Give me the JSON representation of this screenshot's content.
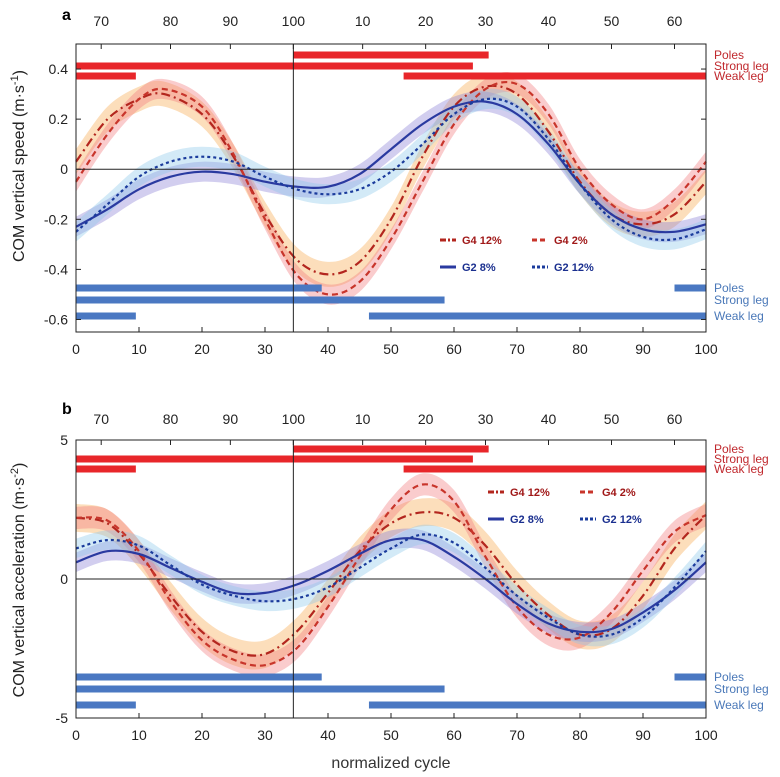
{
  "chart_data": [
    {
      "panel": "a",
      "type": "line",
      "ylabel": "COM vertical speed (m·s-1)",
      "ylabel_main": "COM vertical speed (m·s",
      "ylabel_sup": "-1",
      "ylabel_end": ")",
      "xlabel": "",
      "xlim": [
        0,
        100
      ],
      "ylim": [
        -0.65,
        0.5
      ],
      "yticks": [
        0.4,
        0.2,
        0,
        -0.2,
        -0.4,
        -0.6
      ],
      "ytick_labels": [
        "0.4",
        "0.2",
        "0",
        "-0.2",
        "-0.4",
        "-0.6"
      ],
      "xticks": [
        0,
        10,
        20,
        30,
        40,
        50,
        60,
        70,
        80,
        90,
        100
      ],
      "xtick_labels": [
        "0",
        "10",
        "20",
        "30",
        "40",
        "50",
        "60",
        "70",
        "80",
        "90",
        "100"
      ],
      "top_ticks": [
        {
          "x": 4,
          "label": "70"
        },
        {
          "x": 15,
          "label": "80"
        },
        {
          "x": 24.5,
          "label": "90"
        },
        {
          "x": 34.5,
          "label": "100"
        },
        {
          "x": 45.5,
          "label": "10"
        },
        {
          "x": 55.5,
          "label": "20"
        },
        {
          "x": 65,
          "label": "30"
        },
        {
          "x": 75,
          "label": "40"
        },
        {
          "x": 85,
          "label": "50"
        },
        {
          "x": 95,
          "label": "60"
        }
      ],
      "vline_x": 34.5,
      "zero_line": 0,
      "series": [
        {
          "name": "G4 12%",
          "color": "#b3261e",
          "dash": "9 4 2 4",
          "band": "#f7a84b",
          "band_width": 0.05,
          "x": [
            0,
            5,
            10,
            14,
            20,
            25,
            30,
            35,
            40,
            45,
            50,
            55,
            60,
            65,
            70,
            75,
            80,
            85,
            90,
            95,
            100
          ],
          "y": [
            0.03,
            0.2,
            0.28,
            0.3,
            0.22,
            0.05,
            -0.18,
            -0.36,
            -0.42,
            -0.37,
            -0.2,
            0.05,
            0.25,
            0.33,
            0.3,
            0.15,
            -0.05,
            -0.18,
            -0.22,
            -0.18,
            -0.05
          ]
        },
        {
          "name": "G4 2%",
          "color": "#c8352b",
          "dash": "6 4",
          "band": "#f2787c",
          "band_width": 0.04,
          "x": [
            0,
            5,
            10,
            14,
            20,
            25,
            30,
            35,
            40,
            45,
            50,
            55,
            60,
            65,
            70,
            75,
            80,
            85,
            90,
            95,
            100
          ],
          "y": [
            -0.05,
            0.14,
            0.28,
            0.32,
            0.25,
            0.06,
            -0.2,
            -0.42,
            -0.5,
            -0.45,
            -0.28,
            -0.05,
            0.18,
            0.32,
            0.34,
            0.22,
            0.0,
            -0.14,
            -0.2,
            -0.12,
            0.03
          ]
        },
        {
          "name": "G2 8%",
          "color": "#2a3aa0",
          "dash": "",
          "band": "#8a7fd6",
          "band_width": 0.04,
          "x": [
            0,
            5,
            10,
            15,
            20,
            25,
            30,
            35,
            40,
            45,
            50,
            55,
            60,
            65,
            70,
            75,
            80,
            85,
            90,
            95,
            100
          ],
          "y": [
            -0.23,
            -0.16,
            -0.08,
            -0.03,
            -0.01,
            -0.02,
            -0.05,
            -0.07,
            -0.07,
            -0.02,
            0.08,
            0.18,
            0.25,
            0.27,
            0.22,
            0.1,
            -0.06,
            -0.18,
            -0.24,
            -0.25,
            -0.22
          ]
        },
        {
          "name": "G2 12%",
          "color": "#1a3b9c",
          "dash": "3 3",
          "band": "#8cc7ea",
          "band_width": 0.04,
          "x": [
            0,
            5,
            10,
            15,
            20,
            25,
            30,
            35,
            40,
            45,
            50,
            55,
            60,
            65,
            70,
            75,
            80,
            85,
            90,
            95,
            100
          ],
          "y": [
            -0.25,
            -0.14,
            -0.03,
            0.03,
            0.05,
            0.03,
            -0.03,
            -0.08,
            -0.1,
            -0.08,
            -0.01,
            0.1,
            0.22,
            0.28,
            0.25,
            0.12,
            -0.06,
            -0.2,
            -0.27,
            -0.28,
            -0.24
          ]
        }
      ],
      "legend": {
        "position": "lower-right",
        "entries": [
          "G4 12%",
          "G4 2%",
          "G2 8%",
          "G2 12%"
        ]
      },
      "top_bars": [
        {
          "label": "Poles",
          "segments": [
            [
              34.5,
              65.5
            ]
          ]
        },
        {
          "label": "Strong leg",
          "segments": [
            [
              0,
              63
            ]
          ]
        },
        {
          "label": "Weak leg",
          "segments": [
            [
              0,
              9.5
            ],
            [
              52,
              100
            ]
          ]
        }
      ],
      "bottom_bars": [
        {
          "label": "Poles",
          "segments": [
            [
              0,
              39
            ],
            [
              95,
              100
            ]
          ]
        },
        {
          "label": "Strong leg",
          "segments": [
            [
              0,
              58.5
            ]
          ]
        },
        {
          "label": "Weak leg",
          "segments": [
            [
              0,
              9.5
            ],
            [
              46.5,
              100
            ]
          ]
        }
      ]
    },
    {
      "panel": "b",
      "type": "line",
      "ylabel": "COM vertical acceleration (m·s-2)",
      "ylabel_main": "COM vertical acceleration (m·s",
      "ylabel_sup": "-2",
      "ylabel_end": ")",
      "xlabel": "normalized cycle",
      "xlim": [
        0,
        100
      ],
      "ylim": [
        -5,
        5
      ],
      "yticks": [
        5,
        0,
        -5
      ],
      "ytick_labels": [
        "5",
        "0",
        "-5"
      ],
      "xticks": [
        0,
        10,
        20,
        30,
        40,
        50,
        60,
        70,
        80,
        90,
        100
      ],
      "xtick_labels": [
        "0",
        "10",
        "20",
        "30",
        "40",
        "50",
        "60",
        "70",
        "80",
        "90",
        "100"
      ],
      "top_ticks": [
        {
          "x": 4,
          "label": "70"
        },
        {
          "x": 15,
          "label": "80"
        },
        {
          "x": 24.5,
          "label": "90"
        },
        {
          "x": 34.5,
          "label": "100"
        },
        {
          "x": 45.5,
          "label": "10"
        },
        {
          "x": 55.5,
          "label": "20"
        },
        {
          "x": 65,
          "label": "30"
        },
        {
          "x": 75,
          "label": "40"
        },
        {
          "x": 85,
          "label": "50"
        },
        {
          "x": 95,
          "label": "60"
        }
      ],
      "vline_x": 34.5,
      "zero_line": 0,
      "series": [
        {
          "name": "G4 12%",
          "color": "#b3261e",
          "dash": "9 4 2 4",
          "band": "#f7a84b",
          "band_width": 0.5,
          "x": [
            0,
            5,
            10,
            15,
            20,
            25,
            30,
            35,
            40,
            45,
            50,
            55,
            60,
            65,
            70,
            75,
            80,
            85,
            90,
            95,
            100
          ],
          "y": [
            2.2,
            2.0,
            0.9,
            -0.6,
            -1.9,
            -2.6,
            -2.7,
            -1.9,
            -0.5,
            1.0,
            2.0,
            2.4,
            2.2,
            1.2,
            -0.2,
            -1.3,
            -2.0,
            -1.8,
            -0.6,
            1.1,
            2.3
          ]
        },
        {
          "name": "G4 2%",
          "color": "#c8352b",
          "dash": "6 4",
          "band": "#f2787c",
          "band_width": 0.4,
          "x": [
            0,
            5,
            10,
            15,
            20,
            25,
            30,
            35,
            40,
            45,
            50,
            55,
            60,
            65,
            70,
            75,
            80,
            85,
            90,
            95,
            100
          ],
          "y": [
            2.2,
            2.1,
            1.0,
            -0.8,
            -2.2,
            -2.9,
            -3.1,
            -2.5,
            -1.0,
            0.8,
            2.5,
            3.4,
            2.8,
            0.8,
            -1.0,
            -2.0,
            -2.1,
            -1.2,
            0.3,
            1.7,
            2.3
          ]
        },
        {
          "name": "G2 8%",
          "color": "#2a3aa0",
          "dash": "",
          "band": "#8a7fd6",
          "band_width": 0.35,
          "x": [
            0,
            5,
            10,
            15,
            20,
            25,
            30,
            35,
            40,
            45,
            50,
            55,
            60,
            65,
            70,
            75,
            80,
            85,
            90,
            95,
            100
          ],
          "y": [
            0.6,
            1.0,
            0.9,
            0.4,
            -0.1,
            -0.5,
            -0.5,
            -0.2,
            0.3,
            0.9,
            1.4,
            1.4,
            0.8,
            0.0,
            -0.9,
            -1.6,
            -1.9,
            -1.8,
            -1.2,
            -0.4,
            0.6
          ]
        },
        {
          "name": "G2 12%",
          "color": "#1a3b9c",
          "dash": "3 3",
          "band": "#8cc7ea",
          "band_width": 0.35,
          "x": [
            0,
            5,
            10,
            15,
            20,
            25,
            30,
            35,
            40,
            45,
            50,
            55,
            60,
            65,
            70,
            75,
            80,
            85,
            90,
            95,
            100
          ],
          "y": [
            1.1,
            1.4,
            1.2,
            0.5,
            -0.2,
            -0.6,
            -0.8,
            -0.7,
            -0.3,
            0.4,
            1.1,
            1.6,
            1.3,
            0.4,
            -0.6,
            -1.4,
            -2.0,
            -2.0,
            -1.4,
            -0.3,
            1.0
          ]
        }
      ],
      "legend": {
        "position": "upper-right",
        "entries": [
          "G4 12%",
          "G4 2%",
          "G2 8%",
          "G2 12%"
        ]
      },
      "top_bars": [
        {
          "label": "Poles",
          "segments": [
            [
              34.5,
              65.5
            ]
          ]
        },
        {
          "label": "Strong leg",
          "segments": [
            [
              0,
              63
            ]
          ]
        },
        {
          "label": "Weak leg",
          "segments": [
            [
              0,
              9.5
            ],
            [
              52,
              100
            ]
          ]
        }
      ],
      "bottom_bars": [
        {
          "label": "Poles",
          "segments": [
            [
              0,
              39
            ],
            [
              95,
              100
            ]
          ]
        },
        {
          "label": "Strong leg",
          "segments": [
            [
              0,
              58.5
            ]
          ]
        },
        {
          "label": "Weak leg",
          "segments": [
            [
              0,
              9.5
            ],
            [
              46.5,
              100
            ]
          ]
        }
      ]
    }
  ],
  "colors": {
    "bar_red": "#e8262a",
    "bar_blue": "#4a78c2",
    "label_red": "#c0282d",
    "label_blue": "#4a78b8"
  }
}
